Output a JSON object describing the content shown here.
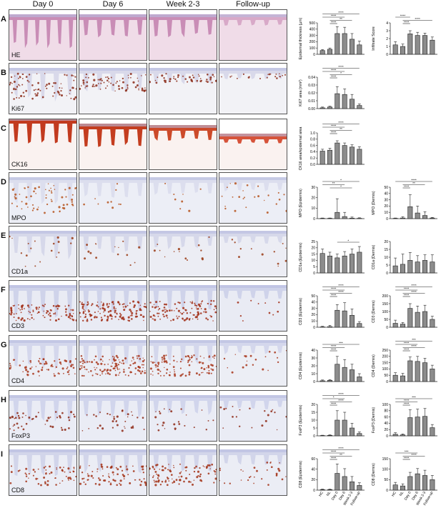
{
  "columns": [
    "Day 0",
    "Day 6",
    "Week 2-3",
    "Follow-up"
  ],
  "rows": [
    {
      "letter": "A",
      "stain": "HE",
      "type": "he"
    },
    {
      "letter": "B",
      "stain": "Ki67",
      "type": "ki67"
    },
    {
      "letter": "C",
      "stain": "CK16",
      "type": "ck16"
    },
    {
      "letter": "D",
      "stain": "MPO",
      "type": "mpo"
    },
    {
      "letter": "E",
      "stain": "CD1a",
      "type": "cd1a"
    },
    {
      "letter": "F",
      "stain": "CD3",
      "type": "cd3"
    },
    {
      "letter": "G",
      "stain": "CD4",
      "type": "cd4"
    },
    {
      "letter": "H",
      "stain": "FoxP3",
      "type": "foxp3"
    },
    {
      "letter": "I",
      "stain": "CD8",
      "type": "cd8"
    }
  ],
  "chart_data": [
    {
      "id": "A1",
      "type": "bar",
      "ylabel": "Epidermal thickness (µm)",
      "yticks": [
        "0",
        "100",
        "200",
        "300",
        "400",
        "500"
      ],
      "ymax": 500,
      "values": [
        60,
        80,
        330,
        330,
        240,
        150
      ],
      "err": [
        15,
        20,
        110,
        100,
        90,
        60
      ],
      "sig": [
        {
          "a": 0,
          "b": 5,
          "t": "****"
        },
        {
          "a": 0,
          "b": 3,
          "t": "****"
        },
        {
          "a": 1,
          "b": 4,
          "t": "**"
        },
        {
          "a": 1,
          "b": 2,
          "t": "****"
        }
      ]
    },
    {
      "id": "A2",
      "type": "bar",
      "ylabel": "Infiltrate Score",
      "yticks": [
        "0",
        "1",
        "2",
        "3",
        "4"
      ],
      "ymax": 4,
      "values": [
        1.2,
        1.0,
        2.6,
        2.4,
        2.4,
        1.8
      ],
      "err": [
        0.4,
        0.3,
        0.4,
        0.4,
        0.3,
        0.4
      ],
      "sig": [
        {
          "a": 0,
          "b": 2,
          "t": "****"
        },
        {
          "a": 1,
          "b": 5,
          "t": "****"
        },
        {
          "a": 1,
          "b": 2,
          "t": "****"
        }
      ]
    },
    {
      "id": "B1",
      "type": "bar",
      "ylabel": "Ki67 area (mm²)",
      "yticks": [
        "0.00",
        "0.01",
        "0.02",
        "0.03",
        "0.04"
      ],
      "ymax": 0.04,
      "values": [
        0.001,
        0.002,
        0.019,
        0.018,
        0.012,
        0.004
      ],
      "err": [
        0.001,
        0.001,
        0.009,
        0.007,
        0.006,
        0.002
      ],
      "sig": [
        {
          "a": 0,
          "b": 5,
          "t": "****"
        },
        {
          "a": 0,
          "b": 3,
          "t": "****"
        },
        {
          "a": 1,
          "b": 4,
          "t": "*"
        },
        {
          "a": 1,
          "b": 2,
          "t": "****"
        }
      ]
    },
    {
      "id": "C1",
      "type": "bar",
      "ylabel": "CK16 area/epidermal area",
      "yticks": [
        "0.0",
        "0.2",
        "0.4",
        "0.6",
        "0.8",
        "1.0"
      ],
      "ymax": 1.0,
      "values": [
        0.42,
        0.45,
        0.68,
        0.6,
        0.55,
        0.48
      ],
      "err": [
        0.06,
        0.06,
        0.07,
        0.08,
        0.07,
        0.08
      ],
      "sig": [
        {
          "a": 0,
          "b": 5,
          "t": "****"
        },
        {
          "a": 0,
          "b": 3,
          "t": "****"
        },
        {
          "a": 1,
          "b": 4,
          "t": "**"
        },
        {
          "a": 1,
          "b": 2,
          "t": "****"
        }
      ]
    },
    {
      "id": "D1",
      "type": "bar",
      "ylabel": "MPO (Epidermis)",
      "yticks": [
        "0",
        "10",
        "20",
        "30"
      ],
      "ymax": 30,
      "values": [
        0.3,
        0.3,
        6,
        2,
        0.5,
        0.3
      ],
      "err": [
        0.3,
        0.3,
        13,
        4,
        1,
        0.5
      ],
      "sig": [
        {
          "a": 0,
          "b": 5,
          "t": "*"
        },
        {
          "a": 0,
          "b": 3,
          "t": "**"
        },
        {
          "a": 1,
          "b": 4,
          "t": "*"
        }
      ]
    },
    {
      "id": "D2",
      "type": "bar",
      "ylabel": "MPO (Dermis)",
      "yticks": [
        "0",
        "10",
        "20",
        "30",
        "40",
        "50"
      ],
      "ymax": 50,
      "values": [
        0.5,
        1,
        19,
        9,
        5,
        1
      ],
      "err": [
        0.5,
        2,
        19,
        11,
        6,
        1
      ],
      "sig": [
        {
          "a": 0,
          "b": 5,
          "t": "****"
        },
        {
          "a": 1,
          "b": 4,
          "t": "**"
        },
        {
          "a": 1,
          "b": 2,
          "t": "****"
        }
      ]
    },
    {
      "id": "E1",
      "type": "bar",
      "ylabel": "CD1a (Epidermis)",
      "yticks": [
        "0",
        "5",
        "10",
        "15",
        "20",
        "25"
      ],
      "ymax": 25,
      "values": [
        15.5,
        13.5,
        12,
        13.5,
        15,
        16.5
      ],
      "err": [
        3.5,
        3,
        3,
        3.5,
        4,
        4.5
      ],
      "sig": [
        {
          "a": 2,
          "b": 5,
          "t": "*"
        }
      ]
    },
    {
      "id": "E2",
      "type": "bar",
      "ylabel": "CD1a (Dermis)",
      "yticks": [
        "0",
        "5",
        "10",
        "15",
        "20"
      ],
      "ymax": 20,
      "values": [
        4.5,
        5.5,
        8,
        7,
        8,
        7
      ],
      "err": [
        5,
        6.5,
        5,
        4,
        3.5,
        4.5
      ],
      "sig": []
    },
    {
      "id": "F1",
      "type": "bar",
      "ylabel": "CD3 (Epidermis)",
      "yticks": [
        "0",
        "10",
        "20",
        "30",
        "40",
        "50"
      ],
      "ymax": 50,
      "values": [
        0.5,
        1,
        27,
        26,
        19,
        6
      ],
      "err": [
        1,
        2,
        9,
        13,
        10,
        3
      ],
      "sig": [
        {
          "a": 0,
          "b": 5,
          "t": "****"
        },
        {
          "a": 0,
          "b": 3,
          "t": "****"
        },
        {
          "a": 1,
          "b": 4,
          "t": "****"
        },
        {
          "a": 1,
          "b": 2,
          "t": "****"
        }
      ]
    },
    {
      "id": "F2",
      "type": "bar",
      "ylabel": "CD3 (Dermis)",
      "yticks": [
        "0",
        "50",
        "100",
        "150",
        "200"
      ],
      "ymax": 200,
      "values": [
        25,
        20,
        120,
        95,
        100,
        50
      ],
      "err": [
        20,
        10,
        30,
        40,
        40,
        20
      ],
      "sig": [
        {
          "a": 0,
          "b": 5,
          "t": "****"
        },
        {
          "a": 0,
          "b": 3,
          "t": "****"
        },
        {
          "a": 1,
          "b": 4,
          "t": "****"
        },
        {
          "a": 1,
          "b": 2,
          "t": "****"
        }
      ]
    },
    {
      "id": "G1",
      "type": "bar",
      "ylabel": "CD4 (Epidermis)",
      "yticks": [
        "0",
        "10",
        "20",
        "30",
        "40"
      ],
      "ymax": 40,
      "values": [
        1,
        1.5,
        22,
        18,
        15,
        6
      ],
      "err": [
        1,
        1,
        10,
        10,
        7,
        4
      ],
      "sig": [
        {
          "a": 0,
          "b": 5,
          "t": "***"
        },
        {
          "a": 0,
          "b": 3,
          "t": "****"
        },
        {
          "a": 1,
          "b": 2,
          "t": "****"
        }
      ]
    },
    {
      "id": "G2",
      "type": "bar",
      "ylabel": "CD4 (Dermis)",
      "yticks": [
        "0",
        "50",
        "100",
        "150",
        "200",
        "250"
      ],
      "ymax": 250,
      "values": [
        50,
        45,
        165,
        160,
        150,
        100
      ],
      "err": [
        20,
        20,
        30,
        40,
        35,
        30
      ],
      "sig": [
        {
          "a": 0,
          "b": 5,
          "t": "***"
        },
        {
          "a": 0,
          "b": 3,
          "t": "****"
        },
        {
          "a": 1,
          "b": 4,
          "t": "****"
        },
        {
          "a": 1,
          "b": 2,
          "t": "****"
        }
      ]
    },
    {
      "id": "H1",
      "type": "bar",
      "ylabel": "FoxP3 (Epidermis)",
      "yticks": [
        "0",
        "5",
        "10",
        "15",
        "20"
      ],
      "ymax": 20,
      "values": [
        0.2,
        0.3,
        10,
        10,
        5,
        1.5
      ],
      "err": [
        0.2,
        0.3,
        6,
        5,
        3,
        1
      ],
      "sig": [
        {
          "a": 0,
          "b": 5,
          "t": "****"
        },
        {
          "a": 0,
          "b": 3,
          "t": "*"
        },
        {
          "a": 1,
          "b": 4,
          "t": "****"
        },
        {
          "a": 1,
          "b": 2,
          "t": "****"
        }
      ]
    },
    {
      "id": "H2",
      "type": "bar",
      "ylabel": "FoxP3 (Dermis)",
      "yticks": [
        "0",
        "20",
        "40",
        "60",
        "80",
        "100"
      ],
      "ymax": 100,
      "values": [
        5,
        3,
        58,
        60,
        62,
        26
      ],
      "err": [
        5,
        3,
        25,
        25,
        25,
        10
      ],
      "sig": [
        {
          "a": 0,
          "b": 5,
          "t": "***"
        },
        {
          "a": 0,
          "b": 3,
          "t": "****"
        },
        {
          "a": 1,
          "b": 2,
          "t": "****"
        }
      ]
    },
    {
      "id": "I1",
      "type": "bar",
      "ylabel": "CD8 (Epidermis)",
      "yticks": [
        "0",
        "20",
        "40",
        "60"
      ],
      "ymax": 60,
      "values": [
        1,
        1,
        32,
        26,
        16,
        9
      ],
      "err": [
        1,
        1,
        18,
        15,
        10,
        5
      ],
      "sig": [
        {
          "a": 0,
          "b": 5,
          "t": "****"
        },
        {
          "a": 0,
          "b": 3,
          "t": "****"
        },
        {
          "a": 1,
          "b": 4,
          "t": "**"
        },
        {
          "a": 1,
          "b": 2,
          "t": "****"
        }
      ]
    },
    {
      "id": "I2",
      "type": "bar",
      "ylabel": "CD8 (Dermis)",
      "yticks": [
        "0",
        "50",
        "100",
        "150"
      ],
      "ymax": 150,
      "values": [
        25,
        20,
        65,
        78,
        70,
        50
      ],
      "err": [
        12,
        10,
        20,
        25,
        25,
        20
      ],
      "sig": [
        {
          "a": 0,
          "b": 3,
          "t": "***"
        },
        {
          "a": 1,
          "b": 4,
          "t": "****"
        },
        {
          "a": 1,
          "b": 2,
          "t": "****"
        }
      ]
    }
  ],
  "categories": [
    "HC",
    "NL",
    "Day 0",
    "Day 6",
    "Week 2-3",
    "Follow-up"
  ]
}
